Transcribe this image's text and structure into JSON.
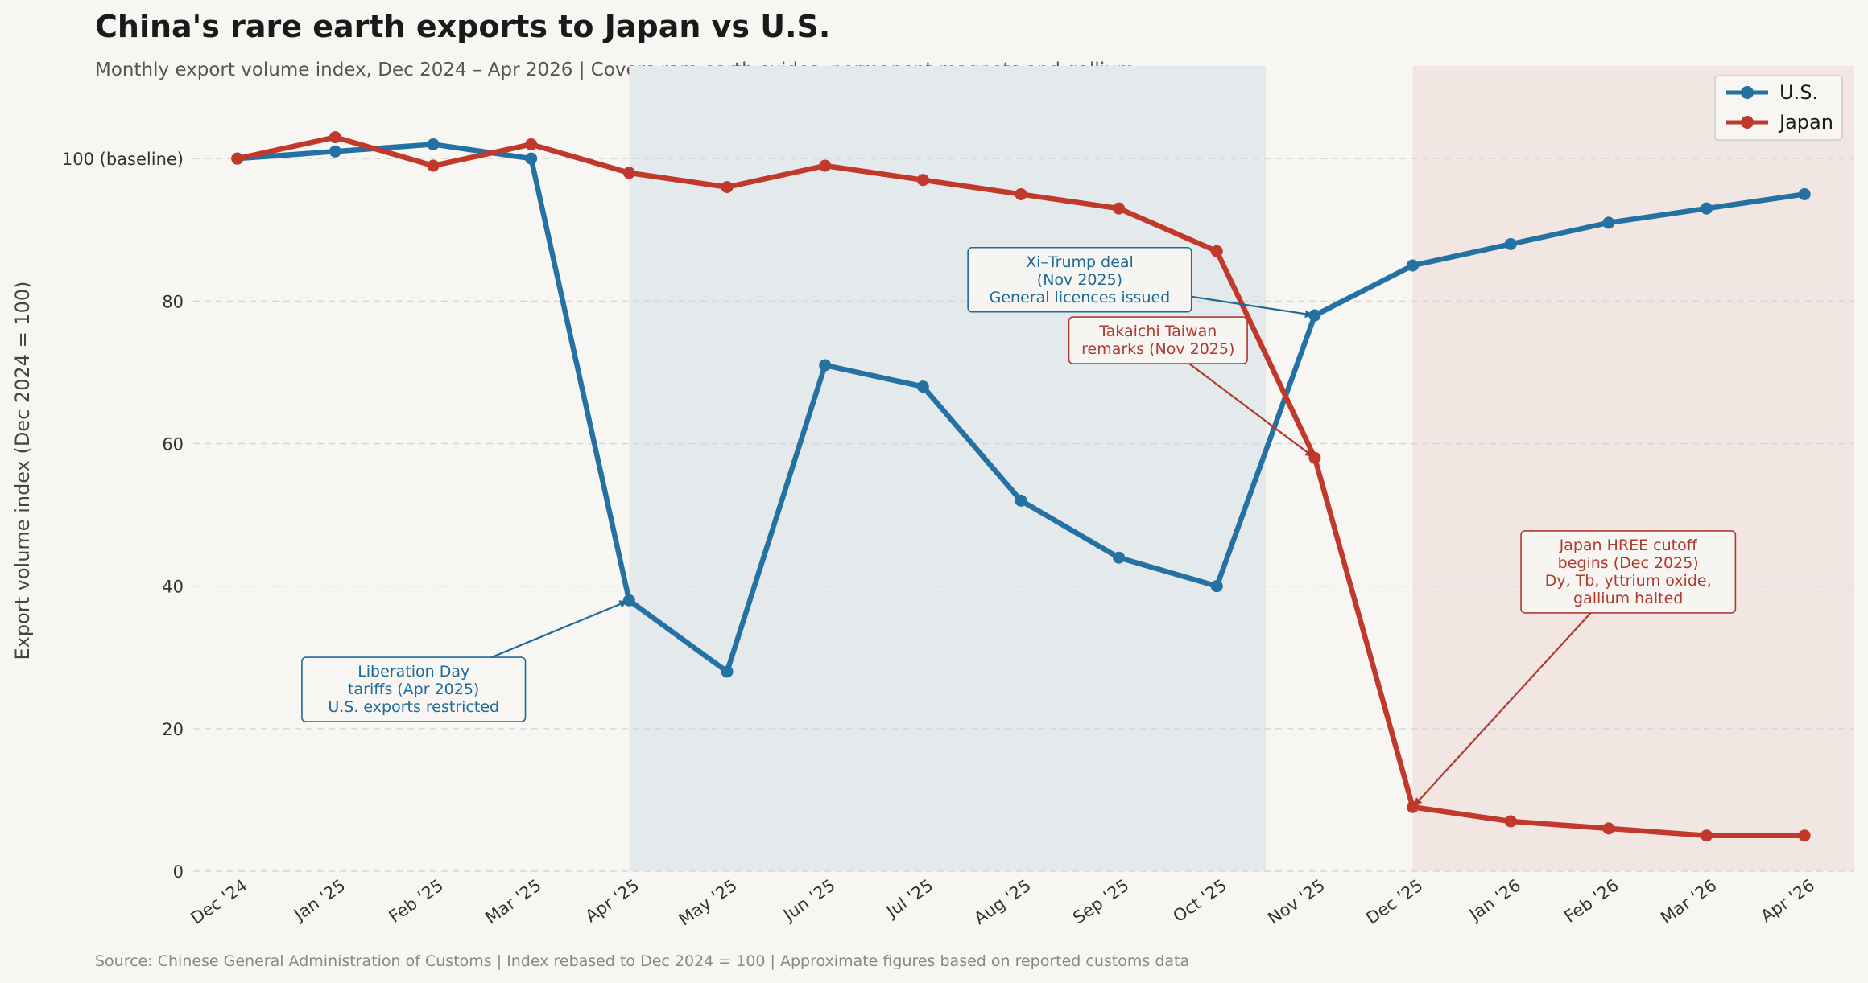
{
  "title": "China's rare earth exports to Japan vs U.S.",
  "subtitle": "Monthly export volume index, Dec 2024 – Apr 2026  |  Covers rare earth oxides, permanent magnets and gallium",
  "source": "Source: Chinese General Administration of Customs  |  Index rebased to Dec 2024 = 100  |  Approximate figures based on reported customs data",
  "chart_data": {
    "type": "line",
    "x": [
      "Dec '24",
      "Jan '25",
      "Feb '25",
      "Mar '25",
      "Apr '25",
      "May '25",
      "Jun '25",
      "Jul '25",
      "Aug '25",
      "Sep '25",
      "Oct '25",
      "Nov '25",
      "Dec '25",
      "Jan '26",
      "Feb '26",
      "Mar '26",
      "Apr '26"
    ],
    "series": [
      {
        "name": "U.S.",
        "color": "#2471a3",
        "values": [
          100,
          101,
          102,
          100,
          38,
          28,
          71,
          68,
          52,
          44,
          40,
          78,
          85,
          88,
          91,
          93,
          95
        ]
      },
      {
        "name": "Japan",
        "color": "#c0392b",
        "values": [
          100,
          103,
          99,
          102,
          98,
          96,
          99,
          97,
          95,
          93,
          87,
          58,
          9,
          7,
          6,
          5,
          5
        ]
      }
    ],
    "ylabel": "Export volume index  (Dec 2024 = 100)",
    "ylim": [
      0,
      113
    ],
    "yticks": [
      0,
      20,
      40,
      60,
      80,
      100
    ],
    "ytick_labels": [
      "0",
      "20",
      "40",
      "60",
      "80",
      "100 (baseline)"
    ],
    "xlim": [
      -0.45,
      16.5
    ],
    "grid": true,
    "legend": "top-right",
    "shaded_regions": [
      {
        "from": 4,
        "to": 10.5,
        "color": "#e4eaec"
      },
      {
        "from": 12,
        "to": 16.5,
        "color": "#f2e6e3"
      }
    ],
    "annotations": [
      {
        "lines": [
          "Liberation Day",
          "tariffs (Apr 2025)",
          "U.S. exports restricted"
        ],
        "color": "#1f6a96",
        "target_x": 4,
        "target_y": 38,
        "box_x": 1.8,
        "box_y": 25.5
      },
      {
        "lines": [
          "Xi–Trump deal",
          "(Nov 2025)",
          "General licences issued"
        ],
        "color": "#1f6a96",
        "target_x": 11,
        "target_y": 78,
        "box_x": 8.6,
        "box_y": 83
      },
      {
        "lines": [
          "Takaichi Taiwan",
          "remarks (Nov 2025)"
        ],
        "color": "#b03a2e",
        "target_x": 11,
        "target_y": 58,
        "box_x": 9.4,
        "box_y": 74.5
      },
      {
        "lines": [
          "Japan HREE cutoff",
          "begins (Dec 2025)",
          "Dy, Tb, yttrium oxide,",
          "gallium halted"
        ],
        "color": "#b03a2e",
        "target_x": 12,
        "target_y": 9,
        "box_x": 14.2,
        "box_y": 42
      }
    ]
  }
}
